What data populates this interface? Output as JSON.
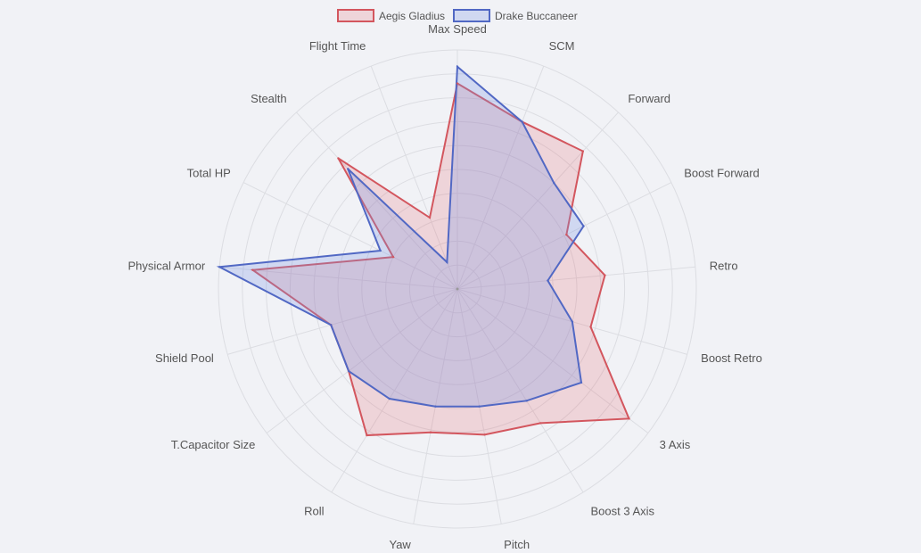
{
  "chart_data": {
    "type": "radar",
    "title": "",
    "categories": [
      "Max Speed",
      "SCM",
      "Forward",
      "Boost Forward",
      "Retro",
      "Boost Retro",
      "3 Axis",
      "Boost 3 Axis",
      "Pitch",
      "Yaw",
      "Roll",
      "T.Capacitor Size",
      "Shield Pool",
      "Physical Armor",
      "Total HP",
      "Stealth",
      "Flight Time"
    ],
    "rlim": [
      0,
      10
    ],
    "grid": true,
    "legend_position": "top",
    "series": [
      {
        "name": "Aegis Gladius",
        "color": "#d3565e",
        "fill": "rgba(229,103,115,0.22)",
        "values": [
          8.6,
          7.5,
          7.8,
          5.1,
          6.2,
          5.8,
          9.0,
          6.6,
          6.2,
          6.1,
          7.2,
          5.7,
          5.5,
          8.6,
          3.0,
          7.4,
          3.2
        ]
      },
      {
        "name": "Drake Buccaneer",
        "color": "#5168c4",
        "fill": "rgba(121,150,231,0.28)",
        "values": [
          9.3,
          7.5,
          6.0,
          5.9,
          3.8,
          5.0,
          6.5,
          5.5,
          5.0,
          5.0,
          5.4,
          5.7,
          5.5,
          10.0,
          3.6,
          6.8,
          1.2
        ]
      }
    ]
  }
}
